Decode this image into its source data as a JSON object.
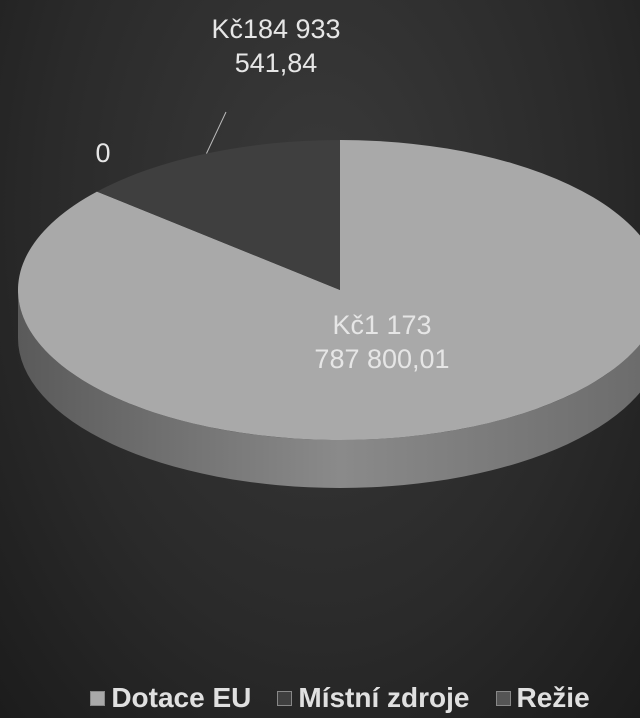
{
  "chart_data": {
    "type": "pie3d",
    "categories": [
      "Dotace EU",
      "Místní zdroje",
      "Režie"
    ],
    "values": [
      1173787800.01,
      184933541.84,
      0
    ],
    "value_labels": [
      "Kč1 173 787 800,01",
      "Kč184 933 541,84",
      "0"
    ],
    "colors": [
      "#a9a9a9",
      "#3f3f3f",
      "#555555"
    ],
    "legend": "bottom"
  }
}
